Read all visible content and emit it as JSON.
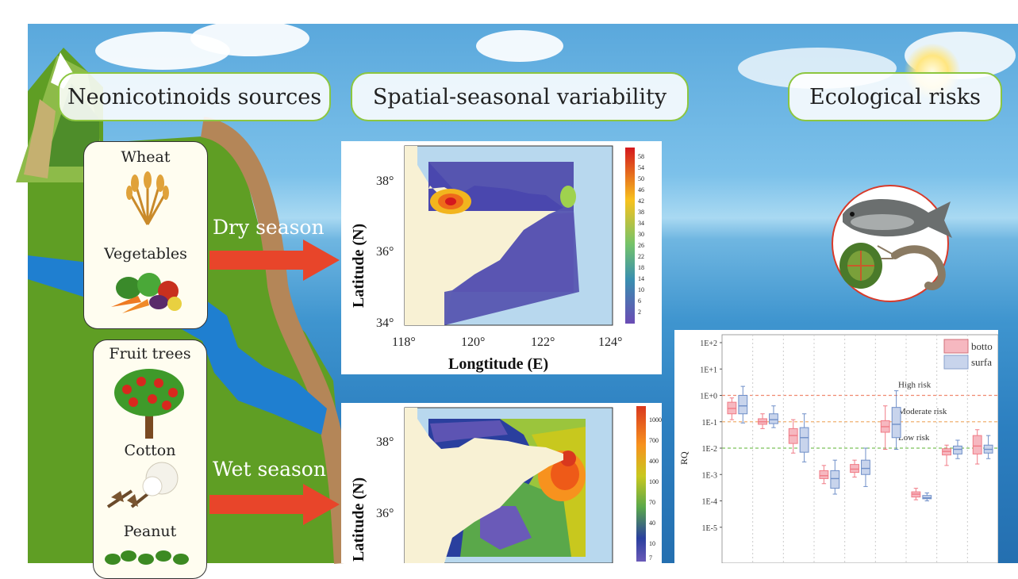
{
  "headers": {
    "sources": "Neonicotinoids sources",
    "variability": "Spatial-seasonal variability",
    "risks": "Ecological risks"
  },
  "crops": {
    "dry": [
      "Wheat",
      "Vegetables"
    ],
    "wet": [
      "Fruit trees",
      "Cotton",
      "Peanut"
    ]
  },
  "seasons": {
    "dry": "Dry season",
    "wet": "Wet season"
  },
  "maps": {
    "dry": {
      "ylabel": "Latitude (N)",
      "xlabel": "Longtitude (E)",
      "yticks": [
        "38°",
        "36°",
        "34°"
      ],
      "xticks": [
        "118°",
        "120°",
        "122°",
        "124°"
      ],
      "colorbar": [
        "58",
        "54",
        "50",
        "46",
        "42",
        "38",
        "34",
        "30",
        "26",
        "22",
        "18",
        "14",
        "10",
        "6",
        "2"
      ],
      "colors": [
        "#d4181e",
        "#e33a1c",
        "#ee5a1a",
        "#f47c18",
        "#f99e1a",
        "#f7c21e",
        "#e9d92a",
        "#c8df3a",
        "#9fd24e",
        "#74c36a",
        "#4fb18a",
        "#3a8fb0",
        "#3a65b8",
        "#4a47ae",
        "#6a4cb4"
      ]
    },
    "wet": {
      "ylabel": "Latitude (N)",
      "yticks": [
        "38°",
        "36°"
      ],
      "colorbar": [
        "1000",
        "700",
        "400",
        "100",
        "70",
        "40",
        "10",
        "7"
      ],
      "colors": [
        "#d9381e",
        "#ee5a18",
        "#f7921e",
        "#c8c81e",
        "#9bc53c",
        "#5aa84a",
        "#2a3f9e",
        "#6a5ab8"
      ]
    }
  },
  "chart_data": {
    "type": "box",
    "ylabel": "RQ",
    "yscale": "log",
    "yticks": [
      "1E+2",
      "1E+1",
      "1E+0",
      "1E-1",
      "1E-2",
      "1E-3",
      "1E-4",
      "1E-5"
    ],
    "ylim": [
      1e-06,
      100
    ],
    "thresholds": [
      {
        "label": "High risk",
        "value": 1,
        "color": "#f08a70"
      },
      {
        "label": "Moderate risk",
        "value": 0.1,
        "color": "#f0b070"
      },
      {
        "label": "Low risk",
        "value": 0.01,
        "color": "#7cc25a"
      }
    ],
    "legend": [
      "botto",
      "surfa"
    ],
    "series": [
      {
        "name": "botto",
        "color": "#f07b86",
        "boxes": [
          [
            0.12,
            0.2,
            0.32,
            0.55,
            0.8
          ],
          [
            0.055,
            0.08,
            0.1,
            0.13,
            0.2
          ],
          [
            0.0065,
            0.015,
            0.03,
            0.055,
            0.12
          ],
          [
            0.00045,
            0.0007,
            0.0009,
            0.0014,
            0.0022
          ],
          [
            0.0008,
            0.0012,
            0.0016,
            0.0024,
            0.0035
          ],
          [
            0.009,
            0.04,
            0.065,
            0.11,
            0.4
          ],
          [
            0.00011,
            0.00014,
            0.00018,
            0.00022,
            0.0003
          ],
          [
            0.0022,
            0.0055,
            0.0075,
            0.0095,
            0.013
          ],
          [
            0.0025,
            0.006,
            0.012,
            0.03,
            0.05
          ]
        ]
      },
      {
        "name": "surfa",
        "color": "#6f8fc8",
        "boxes": [
          [
            0.09,
            0.2,
            0.4,
            1.0,
            2.2
          ],
          [
            0.06,
            0.085,
            0.12,
            0.2,
            0.4
          ],
          [
            0.003,
            0.007,
            0.025,
            0.06,
            0.2
          ],
          [
            0.00018,
            0.0003,
            0.0007,
            0.0014,
            0.0035
          ],
          [
            0.00035,
            0.001,
            0.0017,
            0.0035,
            0.01
          ],
          [
            0.009,
            0.025,
            0.08,
            0.35,
            1.5
          ],
          [
            0.0001,
            0.00012,
            0.00013,
            0.00016,
            0.0002
          ],
          [
            0.004,
            0.006,
            0.009,
            0.012,
            0.02
          ],
          [
            0.004,
            0.0065,
            0.009,
            0.013,
            0.03
          ]
        ]
      }
    ]
  }
}
